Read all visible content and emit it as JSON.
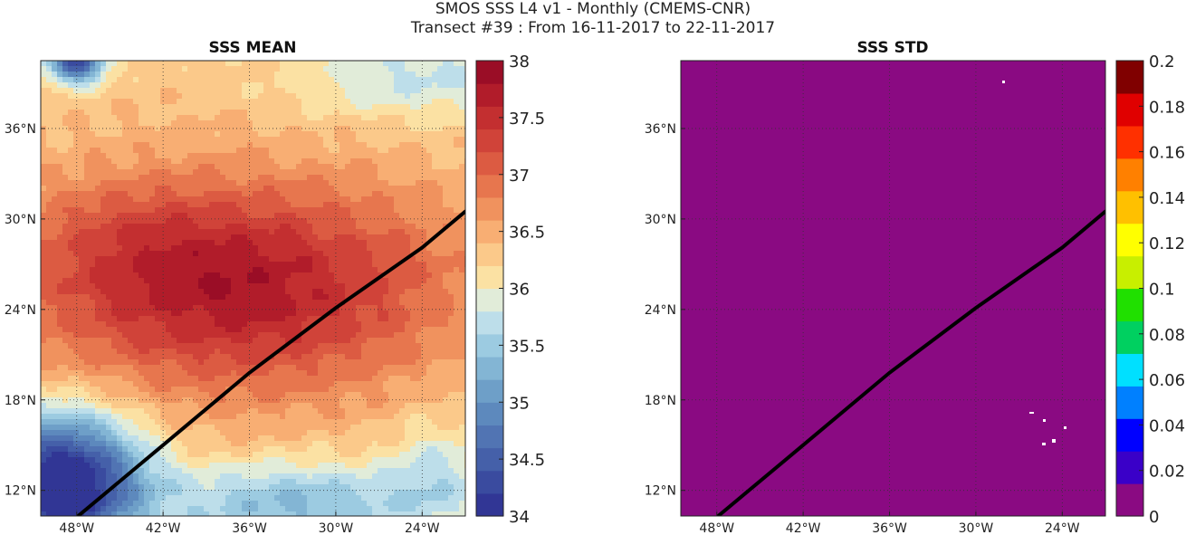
{
  "figure": {
    "title_line1": "SMOS SSS L4 v1 - Monthly (CMEMS-CNR)",
    "title_line2": "Transect #39 : From 16-11-2017 to 22-11-2017"
  },
  "chart_data": [
    {
      "type": "heatmap",
      "title": "SSS MEAN",
      "x_ticks": [
        "48°W",
        "42°W",
        "36°W",
        "30°W",
        "24°W"
      ],
      "y_ticks": [
        "12°N",
        "18°N",
        "24°N",
        "30°N",
        "36°N"
      ],
      "lon_range": [
        -50.5,
        -21.0
      ],
      "lat_range": [
        10.3,
        40.5
      ],
      "grid": true,
      "colorbar": {
        "min": 34,
        "max": 38,
        "ticks": [
          "34",
          "34.5",
          "35",
          "35.5",
          "36",
          "36.5",
          "37",
          "37.5",
          "38"
        ],
        "levels": 20,
        "colors": [
          "#313695",
          "#3a4b9f",
          "#4560a9",
          "#5174b3",
          "#5d89bd",
          "#6e9fc8",
          "#83b5d4",
          "#9ccbe1",
          "#bddeea",
          "#e1ecd9",
          "#fbe1a3",
          "#fbc98a",
          "#f8ae73",
          "#f0925e",
          "#e7764e",
          "#dc5b42",
          "#d04339",
          "#c32f30",
          "#b11c2a",
          "#9a0d26"
        ]
      },
      "transect": {
        "lon": [
          -47.9,
          -42.0,
          -36.0,
          -30.0,
          -24.0,
          -21.0
        ],
        "lat": [
          10.3,
          15.0,
          19.8,
          24.1,
          28.1,
          30.5
        ]
      }
    },
    {
      "type": "heatmap",
      "title": "SSS STD",
      "x_ticks": [
        "48°W",
        "42°W",
        "36°W",
        "30°W",
        "24°W"
      ],
      "y_ticks": [
        "12°N",
        "18°N",
        "24°N",
        "30°N",
        "36°N"
      ],
      "lon_range": [
        -50.5,
        -21.0
      ],
      "lat_range": [
        10.3,
        40.5
      ],
      "grid": true,
      "field_value": 0,
      "colorbar": {
        "min": 0,
        "max": 0.2,
        "ticks": [
          "0",
          "0.02",
          "0.04",
          "0.06",
          "0.08",
          "0.1",
          "0.12",
          "0.14",
          "0.16",
          "0.18",
          "0.2"
        ],
        "colors": [
          "#8a0a82",
          "#3a00c8",
          "#0000ff",
          "#0080ff",
          "#00e0ff",
          "#00d060",
          "#20e000",
          "#c8ef00",
          "#ffff00",
          "#ffc000",
          "#ff8000",
          "#ff3000",
          "#e00000",
          "#800000"
        ]
      },
      "transect": {
        "lon": [
          -47.9,
          -42.0,
          -36.0,
          -30.0,
          -24.0,
          -21.0
        ],
        "lat": [
          10.3,
          15.0,
          19.8,
          24.1,
          28.1,
          30.5
        ]
      }
    }
  ]
}
